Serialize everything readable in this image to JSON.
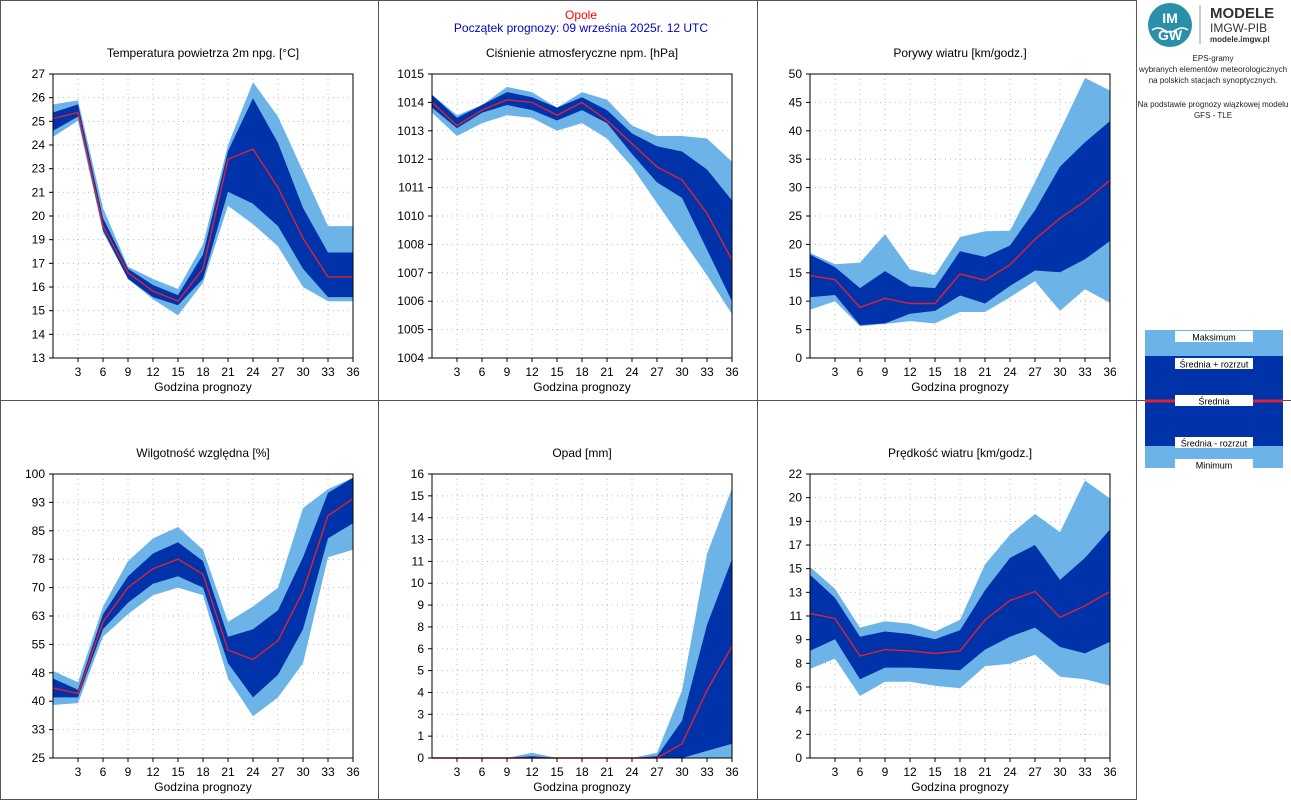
{
  "header": {
    "station": "Opole",
    "forecast_start": "Początek prognozy: 09 września 2025r. 12 UTC",
    "station_color": "#ff0000",
    "forecast_start_color": "#0000cc"
  },
  "branding": {
    "logo_text_top": "IM",
    "logo_text_bottom": "GW",
    "name": "MODELE",
    "subname": "IMGW-PIB",
    "website": "modele.imgw.pl",
    "description": [
      "EPS-gramy",
      "wybranych elementów meteorologicznych",
      "na polskich stacjach  synoptycznych."
    ],
    "model_note": [
      "Na podstawie prognozy wiązkowej modelu",
      "GFS - TLE"
    ]
  },
  "legend": {
    "items": [
      "Maksimum",
      "Średnia + rozrzut",
      "Średnia",
      "Średnia - rozrzut",
      "Minimum"
    ]
  },
  "colors": {
    "band_outer": "#6cb4e8",
    "band_inner": "#0033aa",
    "mean_line": "#dd2233",
    "grid": "#bbbbbb"
  },
  "chart_data": [
    {
      "type": "area",
      "title": "Temperatura powietrza 2m npg. [°C]",
      "xlabel": "Godzina prognozy",
      "x": [
        0,
        3,
        6,
        9,
        12,
        15,
        18,
        21,
        24,
        27,
        30,
        33,
        36
      ],
      "x_ticks": [
        "3",
        "6",
        "9",
        "12",
        "15",
        "18",
        "21",
        "24",
        "27",
        "30",
        "33",
        "36"
      ],
      "y_ticks": [
        "13",
        "14",
        "15",
        "16",
        "17",
        "19",
        "20",
        "21",
        "23",
        "24",
        "25",
        "26",
        "27"
      ],
      "ylim": [
        13,
        27
      ],
      "series": {
        "max": [
          25.5,
          25.7,
          20.4,
          17.5,
          16.9,
          16.4,
          18.6,
          23.5,
          26.6,
          24.9,
          22.2,
          19.5,
          19.5
        ],
        "mean_plus": [
          25.1,
          25.5,
          19.9,
          17.4,
          16.6,
          16.1,
          18.1,
          23.2,
          25.8,
          23.6,
          20.4,
          18.2,
          18.2
        ],
        "mean": [
          24.8,
          25.1,
          19.5,
          17.2,
          16.3,
          15.8,
          17.4,
          22.8,
          23.3,
          21.4,
          18.9,
          17.0,
          17.0
        ],
        "mean_minus": [
          24.2,
          24.9,
          19.3,
          16.9,
          16.0,
          15.6,
          16.9,
          21.2,
          20.6,
          19.5,
          17.4,
          16.0,
          16.0
        ],
        "min": [
          23.9,
          24.7,
          19.2,
          16.9,
          15.9,
          15.1,
          16.7,
          20.5,
          19.6,
          18.5,
          16.5,
          15.8,
          15.8
        ]
      }
    },
    {
      "type": "area",
      "title": "Ciśnienie atmosferyczne npm. [hPa]",
      "xlabel": "Godzina prognozy",
      "x": [
        0,
        3,
        6,
        9,
        12,
        15,
        18,
        21,
        24,
        27,
        30,
        33,
        36
      ],
      "x_ticks": [
        "3",
        "6",
        "9",
        "12",
        "15",
        "18",
        "21",
        "24",
        "27",
        "30",
        "33",
        "36"
      ],
      "y_ticks": [
        "1004",
        "1005",
        "1006",
        "1007",
        "1008",
        "1010",
        "1011",
        "1012",
        "1013",
        "1014",
        "1015"
      ],
      "ylim": [
        1004,
        1015
      ],
      "series": {
        "max": [
          1014.2,
          1013.4,
          1013.8,
          1014.5,
          1014.3,
          1013.7,
          1014.3,
          1014.0,
          1013.0,
          1012.6,
          1012.6,
          1012.5,
          1011.6
        ],
        "mean_plus": [
          1014.2,
          1013.3,
          1013.8,
          1014.3,
          1014.1,
          1013.7,
          1014.1,
          1013.6,
          1012.7,
          1012.2,
          1012.0,
          1011.3,
          1010.1
        ],
        "mean": [
          1013.9,
          1013.0,
          1013.6,
          1014.0,
          1013.9,
          1013.4,
          1013.9,
          1013.2,
          1012.3,
          1011.4,
          1010.9,
          1009.6,
          1007.8
        ],
        "mean_minus": [
          1013.7,
          1012.9,
          1013.5,
          1013.8,
          1013.6,
          1013.2,
          1013.6,
          1013.1,
          1011.9,
          1010.8,
          1010.2,
          1008.2,
          1006.2
        ],
        "min": [
          1013.5,
          1012.6,
          1013.1,
          1013.4,
          1013.3,
          1012.8,
          1013.1,
          1012.5,
          1011.4,
          1010.0,
          1008.6,
          1007.2,
          1005.7
        ]
      }
    },
    {
      "type": "area",
      "title": "Porywy wiatru [km/godz.]",
      "xlabel": "Godzina prognozy",
      "x": [
        0,
        3,
        6,
        9,
        12,
        15,
        18,
        21,
        24,
        27,
        30,
        33,
        36
      ],
      "x_ticks": [
        "3",
        "6",
        "9",
        "12",
        "15",
        "18",
        "21",
        "24",
        "27",
        "30",
        "33",
        "36"
      ],
      "y_ticks": [
        "0",
        "5",
        "10",
        "15",
        "20",
        "25",
        "30",
        "35",
        "40",
        "45",
        "50"
      ],
      "ylim": [
        0,
        50
      ],
      "series": {
        "max": [
          18.5,
          16.5,
          16.8,
          21.8,
          15.6,
          14.6,
          21.3,
          22.3,
          22.4,
          31.0,
          40.0,
          49.3,
          47.1
        ],
        "mean_plus": [
          18.2,
          16.0,
          12.3,
          15.3,
          12.6,
          12.3,
          18.8,
          17.8,
          19.8,
          26.0,
          33.7,
          38.0,
          41.7
        ],
        "mean": [
          14.5,
          13.8,
          8.9,
          10.5,
          9.6,
          9.6,
          14.8,
          13.7,
          16.4,
          20.9,
          24.6,
          27.6,
          31.3
        ],
        "mean_minus": [
          10.7,
          11.1,
          5.8,
          6.1,
          7.8,
          8.3,
          11.0,
          9.6,
          12.7,
          15.4,
          15.1,
          17.4,
          20.6
        ],
        "min": [
          8.5,
          10.0,
          5.6,
          6.0,
          6.5,
          6.1,
          8.1,
          8.1,
          10.7,
          13.5,
          8.3,
          12.1,
          9.7
        ]
      }
    },
    {
      "type": "area",
      "title": "Wilgotność względna [%]",
      "xlabel": "Godzina prognozy",
      "x": [
        0,
        3,
        6,
        9,
        12,
        15,
        18,
        21,
        24,
        27,
        30,
        33,
        36
      ],
      "x_ticks": [
        "3",
        "6",
        "9",
        "12",
        "15",
        "18",
        "21",
        "24",
        "27",
        "30",
        "33",
        "36"
      ],
      "y_ticks": [
        "25",
        "33",
        "40",
        "48",
        "55",
        "63",
        "70",
        "78",
        "85",
        "93",
        "100"
      ],
      "ylim": [
        25,
        100
      ],
      "series": {
        "max": [
          48.0,
          45.0,
          65.0,
          77.0,
          83.0,
          86.0,
          80.0,
          61.0,
          65.0,
          70.0,
          91.0,
          96.0,
          99.0
        ],
        "mean_plus": [
          46.0,
          43.0,
          63.0,
          73.0,
          79.0,
          82.0,
          77.0,
          57.0,
          59.0,
          64.0,
          78.0,
          95.0,
          99.0
        ],
        "mean": [
          43.5,
          42.0,
          61.0,
          70.0,
          75.0,
          77.5,
          73.5,
          53.5,
          51.0,
          56.0,
          69.0,
          89.0,
          93.5
        ],
        "mean_minus": [
          41.0,
          41.0,
          59.0,
          66.0,
          71.0,
          73.0,
          70.0,
          50.0,
          41.0,
          47.0,
          59.0,
          83.0,
          87.0
        ],
        "min": [
          39.0,
          39.5,
          57.0,
          63.0,
          68.0,
          70.0,
          68.0,
          46.0,
          36.0,
          41.0,
          50.0,
          78.0,
          80.0
        ]
      }
    },
    {
      "type": "area",
      "title": "Opad [mm]",
      "xlabel": "Godzina prognozy",
      "x": [
        0,
        3,
        6,
        9,
        12,
        15,
        18,
        21,
        24,
        27,
        30,
        33,
        36
      ],
      "x_ticks": [
        "3",
        "6",
        "9",
        "12",
        "15",
        "18",
        "21",
        "24",
        "27",
        "30",
        "33",
        "36"
      ],
      "y_ticks": [
        "0",
        "1",
        "3",
        "4",
        "5",
        "6",
        "8",
        "9",
        "10",
        "11",
        "13",
        "14",
        "15",
        "16"
      ],
      "ylim": [
        0,
        16
      ],
      "series": {
        "max": [
          0,
          0,
          0,
          0,
          0.3,
          0,
          0,
          0,
          0,
          0.3,
          3.8,
          11.5,
          15.2
        ],
        "mean_plus": [
          0,
          0,
          0,
          0,
          0.1,
          0,
          0,
          0,
          0,
          0.1,
          2.1,
          7.5,
          11.2
        ],
        "mean": [
          0,
          0,
          0,
          0,
          0,
          0,
          0,
          0,
          0,
          0,
          0.8,
          3.8,
          6.3
        ],
        "mean_minus": [
          0,
          0,
          0,
          0,
          0,
          0,
          0,
          0,
          0,
          0,
          0,
          0.4,
          0.8
        ],
        "min": [
          0,
          0,
          0,
          0,
          0,
          0,
          0,
          0,
          0,
          0,
          0,
          0,
          0
        ]
      }
    },
    {
      "type": "area",
      "title": "Prędkość wiatru [km/godz.]",
      "xlabel": "Godzina prognozy",
      "x": [
        0,
        3,
        6,
        9,
        12,
        15,
        18,
        21,
        24,
        27,
        30,
        33,
        36
      ],
      "x_ticks": [
        "3",
        "6",
        "9",
        "12",
        "15",
        "18",
        "21",
        "24",
        "27",
        "30",
        "33",
        "36"
      ],
      "y_ticks": [
        "0",
        "2",
        "4",
        "6",
        "8",
        "9",
        "11",
        "13",
        "15",
        "17",
        "19",
        "20",
        "22"
      ],
      "ylim": [
        0,
        22
      ],
      "series": {
        "max": [
          14.8,
          13.1,
          10.1,
          10.6,
          10.4,
          9.8,
          10.7,
          15.0,
          17.3,
          18.9,
          17.5,
          21.5,
          20.1
        ],
        "mean_plus": [
          14.2,
          12.4,
          9.4,
          9.8,
          9.6,
          9.2,
          9.9,
          13.0,
          15.5,
          16.5,
          13.8,
          15.5,
          17.7
        ],
        "mean": [
          11.2,
          10.8,
          7.9,
          8.4,
          8.3,
          8.1,
          8.3,
          10.7,
          12.2,
          12.9,
          10.9,
          11.8,
          12.9
        ],
        "mean_minus": [
          8.3,
          9.2,
          6.1,
          7.0,
          7.0,
          6.9,
          6.8,
          8.4,
          9.4,
          10.1,
          8.6,
          8.1,
          9.0
        ],
        "min": [
          6.9,
          7.7,
          4.8,
          5.9,
          5.9,
          5.6,
          5.4,
          7.1,
          7.3,
          8.0,
          6.3,
          6.1,
          5.6
        ]
      }
    }
  ]
}
